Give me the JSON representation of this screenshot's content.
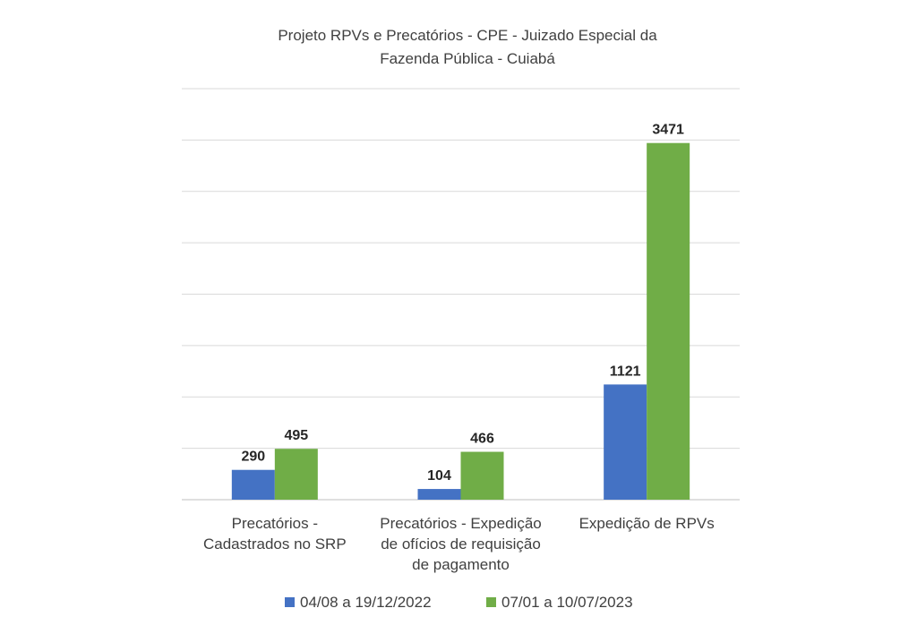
{
  "chart_data": {
    "type": "bar",
    "title_lines": [
      "Projeto RPVs e Precatórios  - CPE - Juizado Especial da",
      "Fazenda Pública  - Cuiabá"
    ],
    "categories": [
      [
        "Precatórios -",
        "Cadastrados no SRP"
      ],
      [
        "Precatórios - Expedição",
        "de ofícios de requisição",
        "de pagamento"
      ],
      [
        "Expedição de RPVs"
      ]
    ],
    "series": [
      {
        "name": "04/08 a 19/12/2022",
        "values": [
          290,
          104,
          1121
        ],
        "labels": [
          "290",
          "104",
          "1121"
        ],
        "color": "#4472C4"
      },
      {
        "name": "07/01 a 10/07/2023",
        "values": [
          495,
          466,
          3471
        ],
        "labels": [
          "495",
          "466",
          "3471"
        ],
        "color": "#70AD47"
      }
    ],
    "ylim": [
      0,
      4000
    ],
    "gridlines": true,
    "y_axis_labels_visible": false,
    "legend_position": "bottom"
  }
}
